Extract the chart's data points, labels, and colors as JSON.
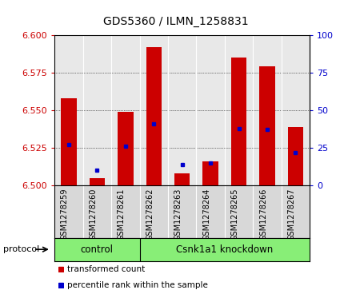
{
  "title": "GDS5360 / ILMN_1258831",
  "samples": [
    "GSM1278259",
    "GSM1278260",
    "GSM1278261",
    "GSM1278262",
    "GSM1278263",
    "GSM1278264",
    "GSM1278265",
    "GSM1278266",
    "GSM1278267"
  ],
  "transformed_count": [
    6.558,
    6.505,
    6.549,
    6.592,
    6.508,
    6.516,
    6.585,
    6.579,
    6.539
  ],
  "percentile_rank": [
    27,
    10,
    26,
    41,
    14,
    15,
    38,
    37,
    22
  ],
  "ylim_left": [
    6.5,
    6.6
  ],
  "yticks_left": [
    6.5,
    6.525,
    6.55,
    6.575,
    6.6
  ],
  "ylim_right": [
    0,
    100
  ],
  "yticks_right": [
    0,
    25,
    50,
    75,
    100
  ],
  "bar_color": "#cc0000",
  "dot_color": "#0000cc",
  "control_indices": [
    0,
    1,
    2
  ],
  "knockdown_indices": [
    3,
    4,
    5,
    6,
    7,
    8
  ],
  "control_label": "control",
  "knockdown_label": "Csnk1a1 knockdown",
  "protocol_label": "protocol",
  "legend_bar_label": "transformed count",
  "legend_dot_label": "percentile rank within the sample",
  "group_bg_color": "#88ee77",
  "tick_label_color_left": "#cc0000",
  "tick_label_color_right": "#0000cc",
  "plot_bg": "#e8e8e8",
  "sample_bg": "#d8d8d8",
  "bar_width": 0.55,
  "title_fontsize": 10,
  "tick_fontsize": 8,
  "sample_fontsize": 7,
  "label_fontsize": 8
}
